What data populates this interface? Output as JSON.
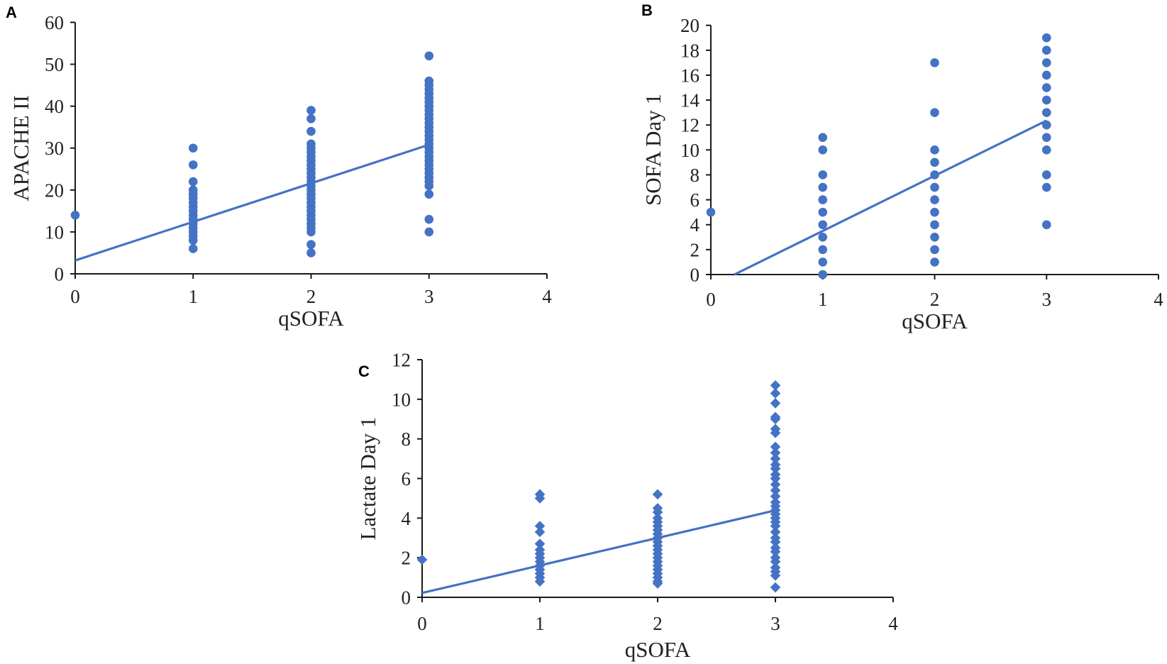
{
  "chart_data": [
    {
      "type": "scatter",
      "panel_label": "A",
      "xlabel": "qSOFA",
      "ylabel": "APACHE II",
      "xlim": [
        0,
        4
      ],
      "ylim": [
        0,
        60
      ],
      "xticks": [
        0,
        1,
        2,
        3,
        4
      ],
      "yticks": [
        0,
        10,
        20,
        30,
        40,
        50,
        60
      ],
      "marker": "circle",
      "color": "#4472C4",
      "points": [
        {
          "x": 0,
          "y": [
            14
          ]
        },
        {
          "x": 1,
          "y": [
            30,
            26,
            22,
            20,
            19,
            18,
            17,
            16,
            15,
            14,
            13,
            12,
            11,
            10,
            9,
            8,
            6
          ]
        },
        {
          "x": 2,
          "y": [
            39,
            37,
            34,
            31,
            30,
            29,
            28,
            27,
            26,
            25,
            24,
            23,
            22,
            21,
            20,
            19,
            18,
            17,
            16,
            15,
            14,
            13,
            12,
            11,
            10,
            7,
            5
          ]
        },
        {
          "x": 3,
          "y": [
            52,
            46,
            45,
            44,
            43,
            42,
            41,
            40,
            39,
            38,
            37,
            36,
            35,
            34,
            33,
            32,
            31,
            30,
            29,
            28,
            27,
            26,
            25,
            24,
            23,
            22,
            21,
            19,
            13,
            10
          ]
        }
      ],
      "trendline": {
        "from": [
          0,
          3.2
        ],
        "to": [
          3,
          30.8
        ]
      }
    },
    {
      "type": "scatter",
      "panel_label": "B",
      "xlabel": "qSOFA",
      "ylabel": "SOFA Day 1",
      "xlim": [
        0,
        4
      ],
      "ylim": [
        0,
        20
      ],
      "xticks": [
        0,
        1,
        2,
        3,
        4
      ],
      "yticks": [
        0,
        2,
        4,
        6,
        8,
        10,
        12,
        14,
        16,
        18,
        20
      ],
      "marker": "circle",
      "color": "#4472C4",
      "points": [
        {
          "x": 0,
          "y": [
            5
          ]
        },
        {
          "x": 1,
          "y": [
            11,
            10,
            8,
            7,
            6,
            5,
            4,
            3,
            2,
            1,
            0
          ]
        },
        {
          "x": 2,
          "y": [
            17,
            13,
            10,
            9,
            8,
            7,
            6,
            5,
            4,
            3,
            2,
            1
          ]
        },
        {
          "x": 3,
          "y": [
            19,
            18,
            17,
            16,
            15,
            14,
            13,
            12,
            11,
            10,
            8,
            7,
            4
          ]
        }
      ],
      "trendline": {
        "from": [
          0.21,
          0
        ],
        "to": [
          3,
          12.36
        ]
      }
    },
    {
      "type": "scatter",
      "panel_label": "C",
      "xlabel": "qSOFA",
      "ylabel": "Lactate Day 1",
      "xlim": [
        0,
        4
      ],
      "ylim": [
        0,
        12
      ],
      "xticks": [
        0,
        1,
        2,
        3,
        4
      ],
      "yticks": [
        0,
        2,
        4,
        6,
        8,
        10,
        12
      ],
      "marker": "diamond",
      "color": "#4472C4",
      "points": [
        {
          "x": 0,
          "y": [
            1.9
          ]
        },
        {
          "x": 1,
          "y": [
            5.2,
            5.0,
            3.6,
            3.3,
            2.7,
            2.4,
            2.2,
            2.0,
            1.8,
            1.6,
            1.4,
            1.2,
            1.0,
            0.8
          ]
        },
        {
          "x": 2,
          "y": [
            5.2,
            4.5,
            4.3,
            4.0,
            3.8,
            3.6,
            3.4,
            3.2,
            3.0,
            2.8,
            2.6,
            2.4,
            2.2,
            2.0,
            1.8,
            1.6,
            1.4,
            1.2,
            1.0,
            0.8,
            0.7
          ]
        },
        {
          "x": 3,
          "y": [
            10.7,
            10.3,
            9.8,
            9.1,
            9.0,
            8.5,
            8.3,
            7.6,
            7.3,
            7.0,
            6.7,
            6.5,
            6.2,
            6.0,
            5.7,
            5.4,
            5.1,
            4.8,
            4.6,
            4.4,
            4.2,
            4.0,
            3.8,
            3.6,
            3.3,
            3.0,
            2.8,
            2.5,
            2.3,
            2.0,
            1.8,
            1.5,
            1.3,
            1.1,
            0.5
          ]
        }
      ],
      "trendline": {
        "from": [
          0,
          0.22
        ],
        "to": [
          3,
          4.39
        ]
      }
    }
  ]
}
